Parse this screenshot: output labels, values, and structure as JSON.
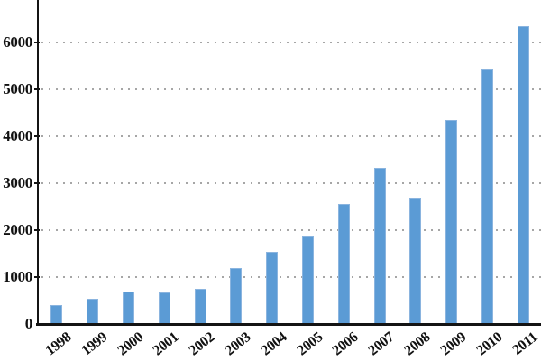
{
  "chart_data": {
    "type": "bar",
    "categories": [
      "1998",
      "1999",
      "2000",
      "2001",
      "2002",
      "2003",
      "2004",
      "2005",
      "2006",
      "2007",
      "2008",
      "2009",
      "2010",
      "2011"
    ],
    "values": [
      400,
      530,
      690,
      680,
      760,
      1200,
      1540,
      1860,
      2550,
      3330,
      2700,
      4340,
      5430,
      6350
    ],
    "y_ticks": [
      0,
      1000,
      2000,
      3000,
      4000,
      5000,
      6000
    ],
    "ylim": [
      0,
      6900
    ],
    "grid": "horizontal-dotted",
    "legend": "none",
    "bar_color": "#5B9BD5",
    "axis_color": "#141414",
    "gridline_color": "#a6a6a6",
    "text_color": "#111111",
    "x_label_rotation_deg": -38
  }
}
